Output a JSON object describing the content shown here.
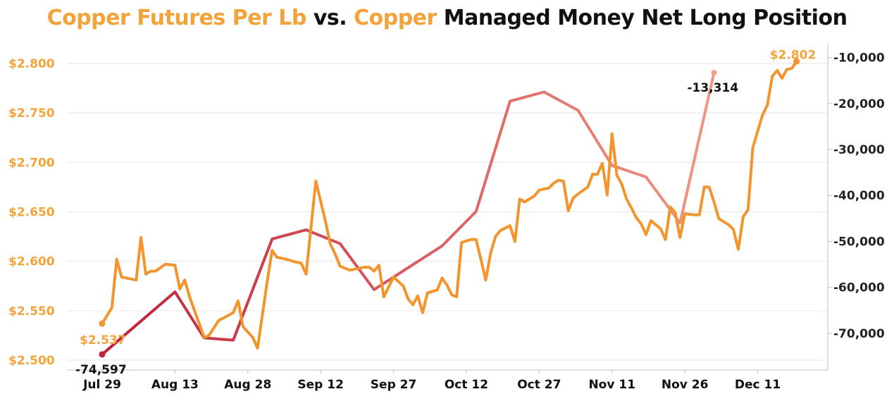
{
  "title": {
    "part1": "Copper Futures Per Lb",
    "part2": " vs. ",
    "part3": "Copper",
    "part4": " Managed Money Net Long Position"
  },
  "colors": {
    "price": "#f2952e",
    "position_start": "#c0213a",
    "position_end": "#f4a08a",
    "axis_left_text": "#f2a33a",
    "grid": "#e6e6e6"
  },
  "chart_data": {
    "type": "line",
    "title": "Copper Futures Per Lb vs. Copper Managed Money Net Long Position",
    "x_ticks": [
      "Jul 29",
      "Aug 13",
      "Aug 28",
      "Sep 12",
      "Sep 27",
      "Oct 12",
      "Oct 27",
      "Nov 11",
      "Nov 26",
      "Dec 11"
    ],
    "x_tick_days": [
      0,
      15,
      30,
      45,
      60,
      75,
      90,
      105,
      120,
      135
    ],
    "xlim": [
      0,
      155
    ],
    "y_left": {
      "ticks": [
        "$2.500",
        "$2.550",
        "$2.600",
        "$2.650",
        "$2.700",
        "$2.750",
        "$2.800"
      ],
      "range": [
        2.49,
        2.82
      ]
    },
    "y_right": {
      "ticks": [
        "-70,000",
        "-60,000",
        "-50,000",
        "-40,000",
        "-30,000",
        "-20,000",
        "-10,000"
      ],
      "range": [
        -78000,
        -7000
      ]
    },
    "series": [
      {
        "axis": "left",
        "points": [
          [
            0,
            2.537
          ],
          [
            2,
            2.553
          ],
          [
            3,
            2.602
          ],
          [
            4,
            2.584
          ],
          [
            6,
            2.582
          ],
          [
            7,
            2.581
          ],
          [
            8,
            2.624
          ],
          [
            9,
            2.587
          ],
          [
            10,
            2.59
          ],
          [
            11,
            2.59
          ],
          [
            13,
            2.597
          ],
          [
            15,
            2.596
          ],
          [
            16,
            2.572
          ],
          [
            17,
            2.581
          ],
          [
            18,
            2.564
          ],
          [
            21,
            2.523
          ],
          [
            22,
            2.525
          ],
          [
            24,
            2.54
          ],
          [
            27,
            2.548
          ],
          [
            28,
            2.56
          ],
          [
            29,
            2.534
          ],
          [
            31,
            2.523
          ],
          [
            32,
            2.512
          ],
          [
            34,
            2.58
          ],
          [
            35,
            2.611
          ],
          [
            36,
            2.604
          ],
          [
            38,
            2.602
          ],
          [
            40,
            2.599
          ],
          [
            41,
            2.598
          ],
          [
            42,
            2.587
          ],
          [
            44,
            2.681
          ],
          [
            46,
            2.64
          ],
          [
            47,
            2.617
          ],
          [
            48,
            2.607
          ],
          [
            49,
            2.595
          ],
          [
            51,
            2.591
          ],
          [
            52,
            2.592
          ],
          [
            54,
            2.594
          ],
          [
            55,
            2.594
          ],
          [
            56,
            2.59
          ],
          [
            57,
            2.596
          ],
          [
            58,
            2.564
          ],
          [
            60,
            2.584
          ],
          [
            62,
            2.575
          ],
          [
            63,
            2.562
          ],
          [
            64,
            2.556
          ],
          [
            65,
            2.565
          ],
          [
            66,
            2.548
          ],
          [
            67,
            2.568
          ],
          [
            69,
            2.571
          ],
          [
            70,
            2.583
          ],
          [
            71,
            2.576
          ],
          [
            72,
            2.566
          ],
          [
            73,
            2.564
          ],
          [
            74,
            2.619
          ],
          [
            76,
            2.622
          ],
          [
            77,
            2.622
          ],
          [
            78,
            2.602
          ],
          [
            79,
            2.581
          ],
          [
            80,
            2.608
          ],
          [
            81,
            2.625
          ],
          [
            82,
            2.631
          ],
          [
            84,
            2.636
          ],
          [
            85,
            2.62
          ],
          [
            86,
            2.663
          ],
          [
            87,
            2.66
          ],
          [
            89,
            2.666
          ],
          [
            90,
            2.672
          ],
          [
            92,
            2.674
          ],
          [
            93,
            2.679
          ],
          [
            94,
            2.682
          ],
          [
            95,
            2.681
          ],
          [
            96,
            2.651
          ],
          [
            97,
            2.664
          ],
          [
            98,
            2.668
          ],
          [
            100,
            2.675
          ],
          [
            101,
            2.688
          ],
          [
            102,
            2.688
          ],
          [
            103,
            2.699
          ],
          [
            104,
            2.667
          ],
          [
            105,
            2.729
          ],
          [
            106,
            2.687
          ],
          [
            107,
            2.678
          ],
          [
            108,
            2.663
          ],
          [
            109,
            2.654
          ],
          [
            110,
            2.644
          ],
          [
            111,
            2.638
          ],
          [
            112,
            2.627
          ],
          [
            113,
            2.641
          ],
          [
            115,
            2.633
          ],
          [
            116,
            2.622
          ],
          [
            117,
            2.655
          ],
          [
            118,
            2.649
          ],
          [
            119,
            2.624
          ],
          [
            120,
            2.648
          ],
          [
            122,
            2.647
          ],
          [
            123,
            2.647
          ],
          [
            124,
            2.675
          ],
          [
            125,
            2.675
          ],
          [
            126,
            2.66
          ],
          [
            127,
            2.643
          ],
          [
            129,
            2.637
          ],
          [
            130,
            2.632
          ],
          [
            131,
            2.612
          ],
          [
            132,
            2.645
          ],
          [
            133,
            2.652
          ],
          [
            134,
            2.715
          ],
          [
            136,
            2.748
          ],
          [
            137,
            2.758
          ],
          [
            138,
            2.787
          ],
          [
            139,
            2.793
          ],
          [
            140,
            2.785
          ],
          [
            141,
            2.794
          ],
          [
            142,
            2.795
          ],
          [
            143,
            2.802
          ]
        ],
        "label_first": "$2.537",
        "label_last": "$2.802"
      },
      {
        "axis": "right",
        "points": [
          [
            0,
            -74597
          ],
          [
            15,
            -61000
          ],
          [
            21,
            -71000
          ],
          [
            27,
            -71500
          ],
          [
            35,
            -49500
          ],
          [
            42,
            -47500
          ],
          [
            49,
            -50500
          ],
          [
            56,
            -60500
          ],
          [
            70,
            -51000
          ],
          [
            77,
            -43500
          ],
          [
            84,
            -19500
          ],
          [
            91,
            -17500
          ],
          [
            98,
            -21500
          ],
          [
            105,
            -33500
          ],
          [
            112,
            -36000
          ],
          [
            119,
            -46000
          ],
          [
            126,
            -13314
          ]
        ],
        "label_first": "-74,597",
        "label_last": "-13,314"
      }
    ],
    "legend": "none",
    "grid": "horizontal"
  }
}
